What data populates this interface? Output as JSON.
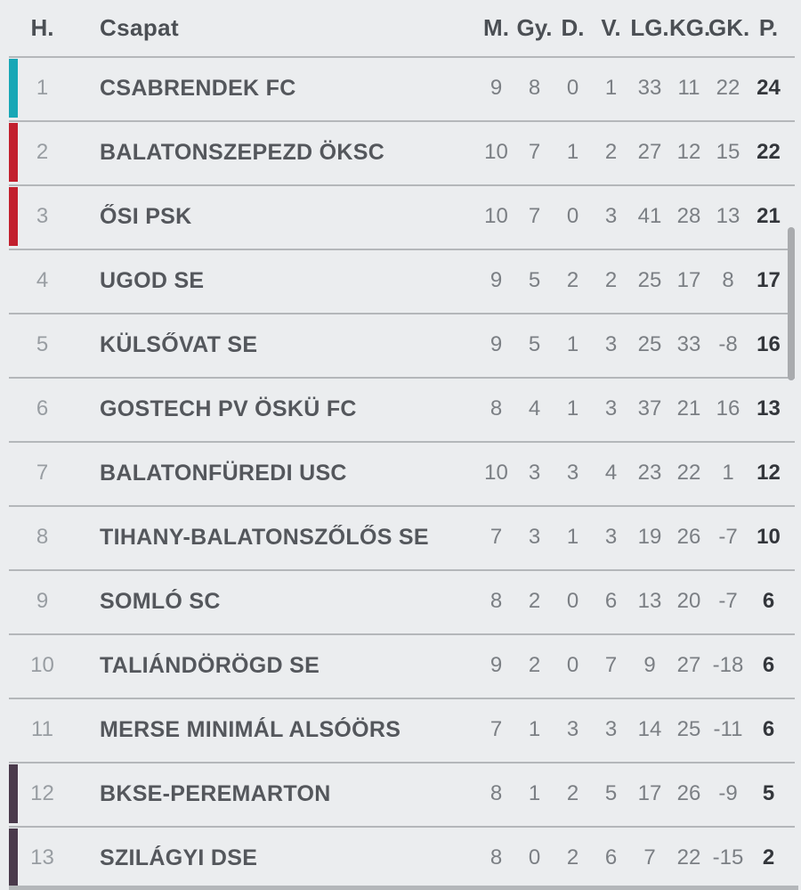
{
  "table": {
    "header": {
      "pos": "H.",
      "team": "Csapat",
      "m": "M.",
      "gy": "Gy.",
      "d": "D.",
      "v": "V.",
      "lg": "LG.",
      "kg": "KG.",
      "gk": "GK.",
      "p": "P."
    },
    "rows": [
      {
        "pos": "1",
        "team": "CSABRENDEK FC",
        "m": "9",
        "gy": "8",
        "d": "0",
        "v": "1",
        "lg": "33",
        "kg": "11",
        "gk": "22",
        "p": "24",
        "accent": "#18a7b6"
      },
      {
        "pos": "2",
        "team": "BALATONSZEPEZD ÖKSC",
        "m": "10",
        "gy": "7",
        "d": "1",
        "v": "2",
        "lg": "27",
        "kg": "12",
        "gk": "15",
        "p": "22",
        "accent": "#c2202e"
      },
      {
        "pos": "3",
        "team": "ŐSI PSK",
        "m": "10",
        "gy": "7",
        "d": "0",
        "v": "3",
        "lg": "41",
        "kg": "28",
        "gk": "13",
        "p": "21",
        "accent": "#c2202e"
      },
      {
        "pos": "4",
        "team": "UGOD SE",
        "m": "9",
        "gy": "5",
        "d": "2",
        "v": "2",
        "lg": "25",
        "kg": "17",
        "gk": "8",
        "p": "17",
        "accent": null
      },
      {
        "pos": "5",
        "team": "KÜLSŐVAT SE",
        "m": "9",
        "gy": "5",
        "d": "1",
        "v": "3",
        "lg": "25",
        "kg": "33",
        "gk": "-8",
        "p": "16",
        "accent": null
      },
      {
        "pos": "6",
        "team": "GOSTECH PV ÖSKÜ FC",
        "m": "8",
        "gy": "4",
        "d": "1",
        "v": "3",
        "lg": "37",
        "kg": "21",
        "gk": "16",
        "p": "13",
        "accent": null
      },
      {
        "pos": "7",
        "team": "BALATONFÜREDI USC",
        "m": "10",
        "gy": "3",
        "d": "3",
        "v": "4",
        "lg": "23",
        "kg": "22",
        "gk": "1",
        "p": "12",
        "accent": null
      },
      {
        "pos": "8",
        "team": "TIHANY-BALATONSZŐLŐS SE",
        "m": "7",
        "gy": "3",
        "d": "1",
        "v": "3",
        "lg": "19",
        "kg": "26",
        "gk": "-7",
        "p": "10",
        "accent": null
      },
      {
        "pos": "9",
        "team": "SOMLÓ SC",
        "m": "8",
        "gy": "2",
        "d": "0",
        "v": "6",
        "lg": "13",
        "kg": "20",
        "gk": "-7",
        "p": "6",
        "accent": null
      },
      {
        "pos": "10",
        "team": "TALIÁNDÖRÖGD SE",
        "m": "9",
        "gy": "2",
        "d": "0",
        "v": "7",
        "lg": "9",
        "kg": "27",
        "gk": "-18",
        "p": "6",
        "accent": null
      },
      {
        "pos": "11",
        "team": "MERSE MINIMÁL ALSÓÖRS",
        "m": "7",
        "gy": "1",
        "d": "3",
        "v": "3",
        "lg": "14",
        "kg": "25",
        "gk": "-11",
        "p": "6",
        "accent": null
      },
      {
        "pos": "12",
        "team": "BKSE-PEREMARTON",
        "m": "8",
        "gy": "1",
        "d": "2",
        "v": "5",
        "lg": "17",
        "kg": "26",
        "gk": "-9",
        "p": "5",
        "accent": "#4a3a4c"
      },
      {
        "pos": "13",
        "team": "SZILÁGYI DSE",
        "m": "8",
        "gy": "0",
        "d": "2",
        "v": "6",
        "lg": "7",
        "kg": "22",
        "gk": "-15",
        "p": "2",
        "accent": "#4a3a4c"
      }
    ]
  },
  "colors": {
    "background": "#ebedef",
    "separator": "#b4b7ba",
    "promotion_accent": "#18a7b6",
    "upper_accent": "#c2202e",
    "relegation_accent": "#4a3a4c",
    "scrollbar": "#a9abae"
  }
}
